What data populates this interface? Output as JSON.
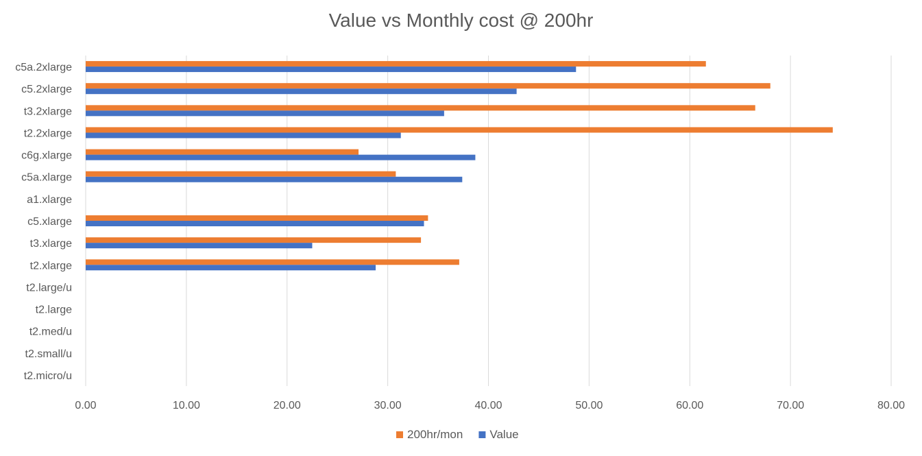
{
  "chart_data": {
    "type": "bar",
    "orientation": "horizontal",
    "title": "Value vs Monthly cost @ 200hr",
    "xlabel": "",
    "ylabel": "",
    "xlim": [
      0,
      80
    ],
    "x_ticks": [
      "0.00",
      "10.00",
      "20.00",
      "30.00",
      "40.00",
      "50.00",
      "60.00",
      "70.00",
      "80.00"
    ],
    "grid": true,
    "legend_position": "bottom",
    "categories": [
      "c5a.2xlarge",
      "c5.2xlarge",
      "t3.2xlarge",
      "t2.2xlarge",
      "c6g.xlarge",
      "c5a.xlarge",
      "a1.xlarge",
      "c5.xlarge",
      "t3.xlarge",
      "t2.xlarge",
      "t2.large/u",
      "t2.large",
      "t2.med/u",
      "t2.small/u",
      "t2.micro/u"
    ],
    "series": [
      {
        "name": "200hr/mon",
        "color": "#ED7D31",
        "values": [
          61.6,
          68.0,
          66.5,
          74.2,
          27.1,
          30.8,
          null,
          34.0,
          33.3,
          37.1,
          null,
          null,
          null,
          null,
          null
        ]
      },
      {
        "name": "Value",
        "color": "#4472C4",
        "values": [
          48.7,
          42.8,
          35.6,
          31.3,
          38.7,
          37.4,
          null,
          33.6,
          22.5,
          28.8,
          null,
          null,
          null,
          null,
          null
        ]
      }
    ]
  }
}
